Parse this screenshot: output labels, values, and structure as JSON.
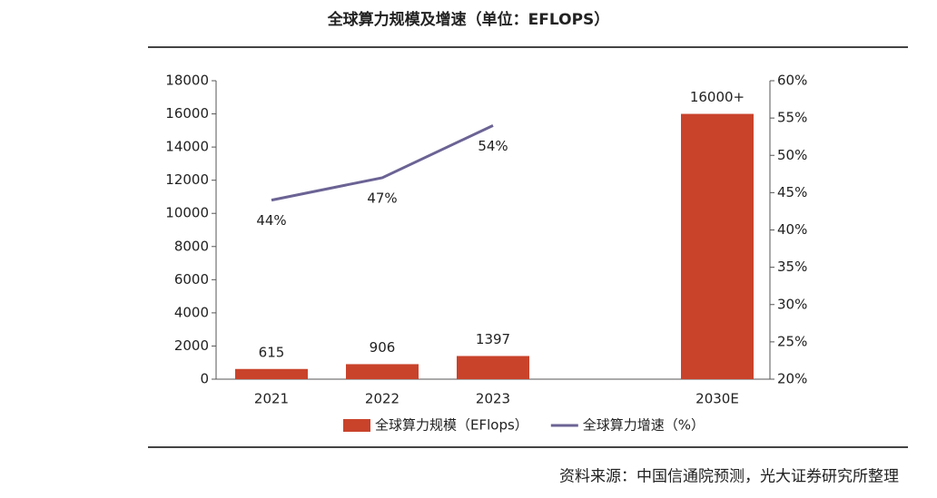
{
  "chart_data": {
    "type": "bar",
    "title": "全球算力规模及增速（单位：EFLOPS）",
    "categories": [
      "2021",
      "2022",
      "2023",
      null,
      "2030E"
    ],
    "series": [
      {
        "name": "全球算力规模（EFlops）",
        "type": "bar",
        "color": "#c9432b",
        "values": [
          615,
          906,
          1397,
          null,
          16000
        ],
        "value_labels": [
          "615",
          "906",
          "1397",
          null,
          "16000+"
        ]
      },
      {
        "name": "全球算力增速（%）",
        "type": "line",
        "axis": "y2",
        "color": "#6b6394",
        "values": [
          44,
          47,
          54,
          null,
          null
        ],
        "value_labels": [
          "44%",
          "47%",
          "54%",
          null,
          null
        ]
      }
    ],
    "ylim": [
      0,
      18000
    ],
    "yticks": [
      0,
      2000,
      4000,
      6000,
      8000,
      10000,
      12000,
      14000,
      16000,
      18000
    ],
    "y2lim": [
      20,
      60
    ],
    "y2ticks": [
      {
        "value": 20,
        "label": "20%"
      },
      {
        "value": 25,
        "label": "25%"
      },
      {
        "value": 30,
        "label": "30%"
      },
      {
        "value": 35,
        "label": "35%"
      },
      {
        "value": 40,
        "label": "40%"
      },
      {
        "value": 45,
        "label": "45%"
      },
      {
        "value": 50,
        "label": "50%"
      },
      {
        "value": 55,
        "label": "55%"
      },
      {
        "value": 60,
        "label": "60%"
      }
    ],
    "legend": "bottom",
    "source": "资料来源：中国信通院预测，光大证券研究所整理"
  }
}
